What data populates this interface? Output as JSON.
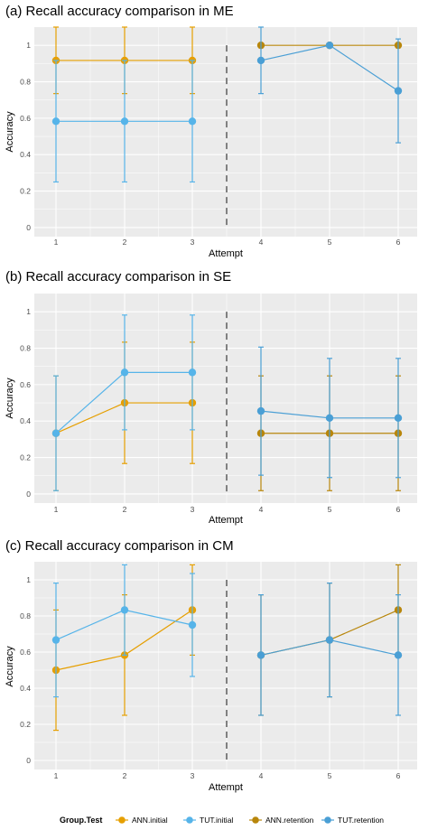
{
  "chart_data": [
    {
      "type": "line",
      "title": "(a) Recall accuracy comparison in ME",
      "xlabel": "Attempt",
      "ylabel": "Accuracy",
      "ylim": [
        -0.05,
        1.1
      ],
      "y_ticks": [
        "0",
        "0.2",
        "0.4",
        "0.6",
        "0.8",
        "1"
      ],
      "x_ticks": [
        "1",
        "2",
        "3",
        "4",
        "5",
        "6"
      ],
      "grid": true,
      "divider_between_attempts": [
        3,
        4
      ],
      "series": [
        {
          "name": "ANN.initial",
          "x": [
            1,
            2,
            3
          ],
          "values": [
            0.917,
            0.917,
            0.917
          ],
          "err_low": [
            0.735,
            0.735,
            0.735
          ],
          "err_high": [
            1.1,
            1.1,
            1.1
          ]
        },
        {
          "name": "TUT.initial",
          "x": [
            1,
            2,
            3
          ],
          "values": [
            0.583,
            0.583,
            0.583
          ],
          "err_low": [
            0.25,
            0.25,
            0.25
          ],
          "err_high": [
            0.917,
            0.917,
            0.917
          ]
        },
        {
          "name": "ANN.retention",
          "x": [
            4,
            5,
            6
          ],
          "values": [
            1.0,
            1.0,
            1.0
          ],
          "err_low": [
            1.0,
            1.0,
            1.0
          ],
          "err_high": [
            1.0,
            1.0,
            1.0
          ]
        },
        {
          "name": "TUT.retention",
          "x": [
            4,
            5,
            6
          ],
          "values": [
            0.917,
            1.0,
            0.75
          ],
          "err_low": [
            0.735,
            1.0,
            0.465
          ],
          "err_high": [
            1.1,
            1.0,
            1.035
          ]
        }
      ]
    },
    {
      "type": "line",
      "title": "(b) Recall accuracy comparison in SE",
      "xlabel": "Attempt",
      "ylabel": "Accuracy",
      "ylim": [
        -0.05,
        1.1
      ],
      "y_ticks": [
        "0",
        "0.2",
        "0.4",
        "0.6",
        "0.8",
        "1"
      ],
      "x_ticks": [
        "1",
        "2",
        "3",
        "4",
        "5",
        "6"
      ],
      "grid": true,
      "divider_between_attempts": [
        3,
        4
      ],
      "series": [
        {
          "name": "ANN.initial",
          "x": [
            1,
            2,
            3
          ],
          "values": [
            0.333,
            0.5,
            0.5
          ],
          "err_low": [
            0.018,
            0.167,
            0.167
          ],
          "err_high": [
            0.648,
            0.833,
            0.833
          ]
        },
        {
          "name": "TUT.initial",
          "x": [
            1,
            2,
            3
          ],
          "values": [
            0.333,
            0.667,
            0.667
          ],
          "err_low": [
            0.018,
            0.352,
            0.352
          ],
          "err_high": [
            0.648,
            0.982,
            0.982
          ]
        },
        {
          "name": "ANN.retention",
          "x": [
            4,
            5,
            6
          ],
          "values": [
            0.333,
            0.333,
            0.333
          ],
          "err_low": [
            0.018,
            0.018,
            0.018
          ],
          "err_high": [
            0.648,
            0.648,
            0.648
          ]
        },
        {
          "name": "TUT.retention",
          "x": [
            4,
            5,
            6
          ],
          "values": [
            0.455,
            0.417,
            0.417
          ],
          "err_low": [
            0.103,
            0.09,
            0.09
          ],
          "err_high": [
            0.806,
            0.744,
            0.744
          ]
        }
      ]
    },
    {
      "type": "line",
      "title": "(c) Recall accuracy comparison in CM",
      "xlabel": "Attempt",
      "ylabel": "Accuracy",
      "ylim": [
        -0.05,
        1.1
      ],
      "y_ticks": [
        "0",
        "0.2",
        "0.4",
        "0.6",
        "0.8",
        "1"
      ],
      "x_ticks": [
        "1",
        "2",
        "3",
        "4",
        "5",
        "6"
      ],
      "grid": true,
      "divider_between_attempts": [
        3,
        4
      ],
      "series": [
        {
          "name": "ANN.initial",
          "x": [
            1,
            2,
            3
          ],
          "values": [
            0.5,
            0.583,
            0.833
          ],
          "err_low": [
            0.167,
            0.25,
            0.583
          ],
          "err_high": [
            0.833,
            0.917,
            1.083
          ]
        },
        {
          "name": "TUT.initial",
          "x": [
            1,
            2,
            3
          ],
          "values": [
            0.667,
            0.833,
            0.75
          ],
          "err_low": [
            0.352,
            0.583,
            0.465
          ],
          "err_high": [
            0.982,
            1.083,
            1.035
          ]
        },
        {
          "name": "ANN.retention",
          "x": [
            4,
            5,
            6
          ],
          "values": [
            0.583,
            0.667,
            0.833
          ],
          "err_low": [
            0.25,
            0.352,
            0.583
          ],
          "err_high": [
            0.917,
            0.982,
            1.083
          ]
        },
        {
          "name": "TUT.retention",
          "x": [
            4,
            5,
            6
          ],
          "values": [
            0.583,
            0.667,
            0.583
          ],
          "err_low": [
            0.25,
            0.352,
            0.25
          ],
          "err_high": [
            0.917,
            0.982,
            0.917
          ]
        }
      ]
    }
  ],
  "legend": {
    "title": "Group.Test",
    "items": [
      {
        "label": "ANN.initial",
        "color": "#E69F00"
      },
      {
        "label": "TUT.initial",
        "color": "#56B4E9"
      },
      {
        "label": "ANN.retention",
        "color": "#B8860B"
      },
      {
        "label": "TUT.retention",
        "color": "#4A9FD5"
      }
    ]
  },
  "colors": {
    "ANN.initial": "#E69F00",
    "TUT.initial": "#56B4E9",
    "ANN.retention": "#B8860B",
    "TUT.retention": "#4A9FD5",
    "panel_background": "#EBEBEB",
    "grid": "#FFFFFF",
    "divider": "#808080"
  }
}
